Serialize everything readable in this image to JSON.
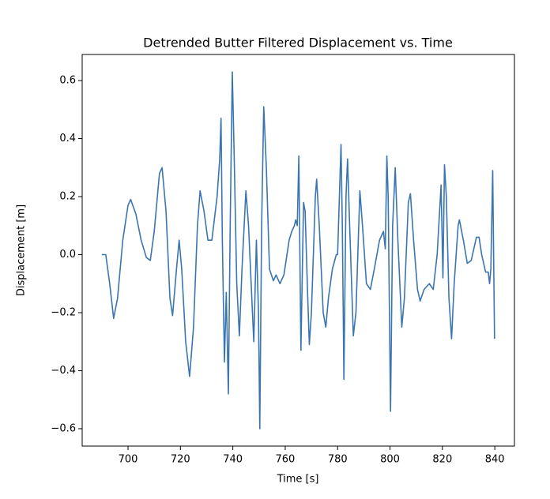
{
  "chart_data": {
    "type": "line",
    "title": "Detrended Butter Filtered Displacement vs. Time",
    "x_label": "Time [s]",
    "y_label": "Displacement [m]",
    "x": [
      690,
      691.5,
      693,
      694.5,
      696,
      698,
      700,
      701,
      703,
      705,
      707,
      708.5,
      710,
      712,
      713,
      714.5,
      716,
      717,
      718.5,
      719.5,
      720.5,
      722,
      723.5,
      725,
      726.5,
      727.5,
      729,
      730.5,
      732,
      734,
      735,
      735.5,
      736,
      736.8,
      737.5,
      738.3,
      739,
      739.8,
      740.5,
      741.5,
      742.5,
      743.5,
      745,
      746,
      747,
      748,
      749,
      749.8,
      750.3,
      751,
      751.8,
      752.8,
      754,
      755.5,
      756.5,
      758,
      759.5,
      761.5,
      762.5,
      763.5,
      764,
      764.6,
      765.2,
      766,
      767,
      767.6,
      768.5,
      769.2,
      770,
      771.5,
      772,
      773,
      774.5,
      775.5,
      776.5,
      778,
      779.5,
      780,
      781.3,
      781.8,
      782.4,
      783.2,
      783.8,
      784.6,
      786,
      787,
      788.5,
      789.5,
      791,
      792.5,
      794,
      796,
      797.5,
      798.2,
      798.8,
      799.3,
      800.2,
      801,
      802,
      803,
      804.5,
      805.5,
      807,
      807.8,
      809,
      810.5,
      811.5,
      813,
      815,
      816.5,
      818,
      819.5,
      820.2,
      820.8,
      821.5,
      822.5,
      823.5,
      824.5,
      826,
      826.5,
      828,
      829.5,
      831,
      833,
      834,
      835,
      836.5,
      837.5,
      838,
      838.5,
      839.2,
      839.9
    ],
    "series": [
      {
        "name": "displacement",
        "color": "#3b75af",
        "values": [
          0,
          0,
          -0.1,
          -0.22,
          -0.15,
          0.05,
          0.17,
          0.19,
          0.14,
          0.05,
          -0.01,
          -0.02,
          0.08,
          0.28,
          0.3,
          0.15,
          -0.15,
          -0.21,
          -0.05,
          0.05,
          -0.05,
          -0.3,
          -0.42,
          -0.25,
          0.1,
          0.22,
          0.15,
          0.05,
          0.05,
          0.2,
          0.33,
          0.47,
          0.05,
          -0.37,
          -0.13,
          -0.48,
          0.1,
          0.63,
          0.35,
          -0.1,
          -0.28,
          -0.05,
          0.22,
          0.1,
          -0.1,
          -0.3,
          0.05,
          -0.2,
          -0.6,
          0.1,
          0.51,
          0.3,
          -0.05,
          -0.09,
          -0.07,
          -0.1,
          -0.07,
          0.05,
          0.08,
          0.1,
          0.12,
          0.1,
          0.34,
          -0.33,
          0.18,
          0.15,
          -0.12,
          -0.31,
          -0.2,
          0.2,
          0.26,
          0.1,
          -0.2,
          -0.25,
          -0.15,
          -0.05,
          0,
          0,
          0.38,
          0.1,
          -0.43,
          0.2,
          0.33,
          0.1,
          -0.28,
          -0.2,
          0.22,
          0.1,
          -0.1,
          -0.12,
          -0.05,
          0.05,
          0.08,
          0.02,
          0.34,
          0.2,
          -0.54,
          0.1,
          0.3,
          0.05,
          -0.25,
          -0.15,
          0.18,
          0.21,
          0.05,
          -0.12,
          -0.16,
          -0.12,
          -0.1,
          -0.12,
          0,
          0.24,
          -0.08,
          0.31,
          0.2,
          -0.15,
          -0.29,
          -0.1,
          0.1,
          0.12,
          0.05,
          -0.03,
          -0.02,
          0.06,
          0.06,
          0,
          -0.06,
          -0.06,
          -0.1,
          -0.05,
          0.29,
          -0.29
        ]
      }
    ],
    "xlim": [
      682.5,
      847.5
    ],
    "ylim": [
      -0.66,
      0.69
    ],
    "xticks": [
      700,
      720,
      740,
      760,
      780,
      800,
      820,
      840
    ],
    "yticks": [
      {
        "value": -0.6,
        "label": "−0.6"
      },
      {
        "value": -0.4,
        "label": "−0.4"
      },
      {
        "value": -0.2,
        "label": "−0.2"
      },
      {
        "value": 0,
        "label": "0.0"
      },
      0.2,
      0.4,
      0.6
    ],
    "grid": false
  }
}
